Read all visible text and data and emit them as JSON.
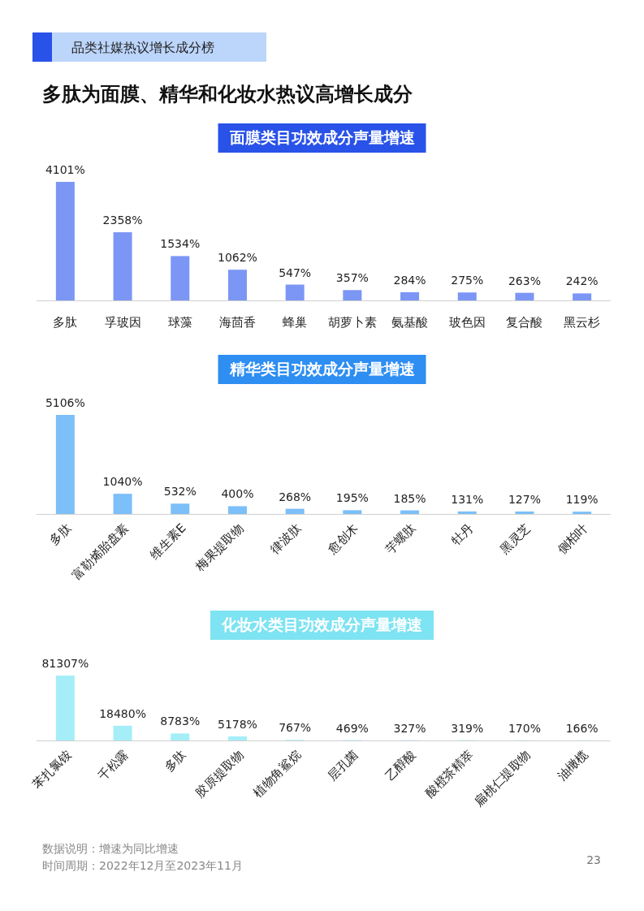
{
  "chart_data": [
    {
      "type": "bar",
      "title": "面膜类目功效成分声量增速",
      "annotations": [
        "品类社媒热议增长成分榜",
        "多肽为面膜、精华和化妆水热议高增长成分"
      ],
      "categories": [
        "多肽",
        "孚玻因",
        "球藻",
        "海茴香",
        "蜂巢",
        "胡萝卜素",
        "氨基酸",
        "玻色因",
        "复合酸",
        "黑云杉"
      ],
      "values": [
        4101,
        2358,
        1534,
        1062,
        547,
        357,
        284,
        275,
        263,
        242
      ],
      "value_labels": [
        "4101%",
        "2358%",
        "1534%",
        "1062%",
        "547%",
        "357%",
        "284%",
        "275%",
        "263%",
        "242%"
      ],
      "color": "#7b96f5"
    },
    {
      "type": "bar",
      "title": "精华类目功效成分声量增速",
      "categories": [
        "多肽",
        "富勒烯胎盘素",
        "维生素E",
        "梅果提取物",
        "律波肽",
        "愈创木",
        "芋螺肽",
        "牡丹",
        "黑灵芝",
        "侧柏叶"
      ],
      "values": [
        5106,
        1040,
        532,
        400,
        268,
        195,
        185,
        131,
        127,
        119
      ],
      "value_labels": [
        "5106%",
        "1040%",
        "532%",
        "400%",
        "268%",
        "195%",
        "185%",
        "131%",
        "127%",
        "119%"
      ],
      "color": "#7cbff9"
    },
    {
      "type": "bar",
      "title": "化妆水类目功效成分声量增速",
      "categories": [
        "苯扎氯铵",
        "千松露",
        "多肽",
        "胶原提取物",
        "植物角鲨烷",
        "层孔菌",
        "乙醇酸",
        "酸橙茶精萃",
        "扁桃仁提取物",
        "油橄榄"
      ],
      "values": [
        81307,
        18480,
        8783,
        5178,
        767,
        469,
        327,
        319,
        170,
        166
      ],
      "value_labels": [
        "81307%",
        "18480%",
        "8783%",
        "5178%",
        "767%",
        "469%",
        "327%",
        "319%",
        "170%",
        "166%"
      ],
      "color": "#a5eef8",
      "annotations": [
        "数据说明：增速为同比增速",
        "时间周期：2022年12月至2023年11月",
        "23"
      ]
    }
  ]
}
